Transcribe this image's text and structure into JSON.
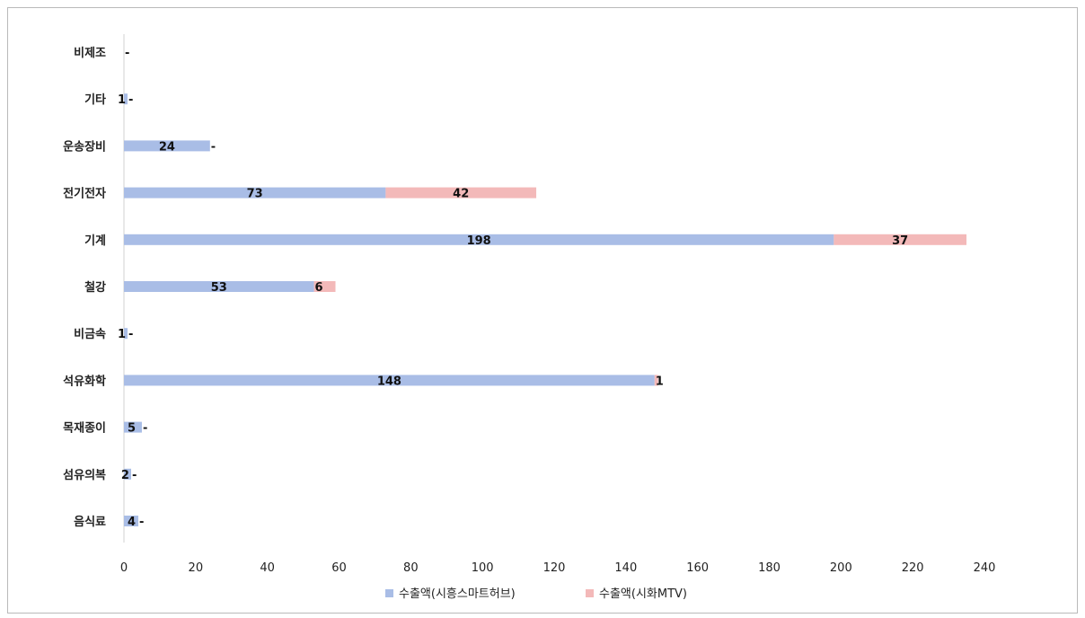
{
  "chart_data": {
    "type": "bar",
    "orientation": "horizontal",
    "stacked": true,
    "categories": [
      "음식료",
      "섬유의복",
      "목재종이",
      "석유화학",
      "비금속",
      "철강",
      "기계",
      "전기전자",
      "운송장비",
      "기타",
      "비제조"
    ],
    "series": [
      {
        "name": "수출액(시흥스마트허브)",
        "color": "#a9bde6",
        "values": [
          4,
          2,
          5,
          148,
          1,
          53,
          198,
          73,
          24,
          1,
          null
        ],
        "labels": [
          "4",
          "2",
          "5",
          "148",
          "1",
          "53",
          "198",
          "73",
          "24",
          "1",
          ""
        ]
      },
      {
        "name": "수출액(시화MTV)",
        "color": "#f3b9b9",
        "values": [
          null,
          null,
          null,
          1,
          null,
          6,
          37,
          42,
          null,
          null,
          null
        ],
        "labels": [
          "-",
          "-",
          "-",
          "1",
          "-",
          "6",
          "37",
          "42",
          "-",
          "-",
          "-"
        ]
      }
    ],
    "xlim": [
      0,
      240
    ],
    "xticks": [
      0,
      20,
      40,
      60,
      80,
      100,
      120,
      140,
      160,
      180,
      200,
      220,
      240
    ],
    "grid": false,
    "legend_position": "bottom"
  }
}
